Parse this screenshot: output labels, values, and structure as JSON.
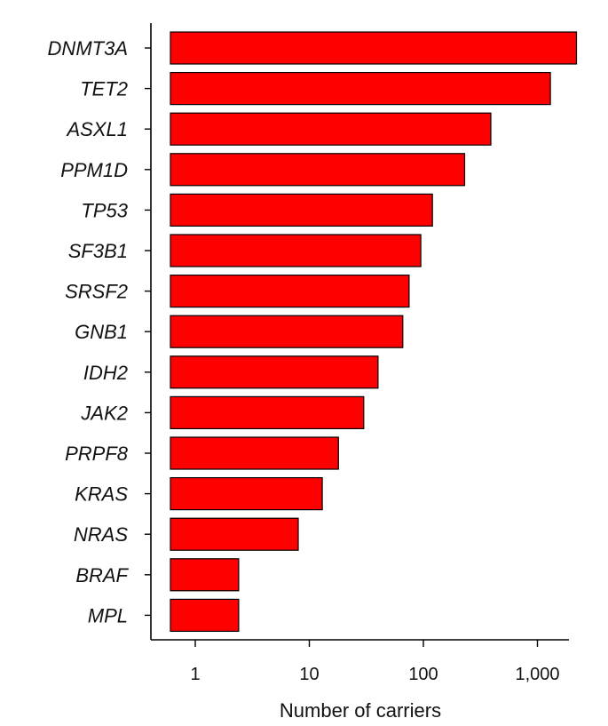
{
  "chart_data": {
    "type": "bar",
    "orientation": "horizontal",
    "x_scale": "log",
    "categories": [
      "DNMT3A",
      "TET2",
      "ASXL1",
      "PPM1D",
      "TP53",
      "SF3B1",
      "SRSF2",
      "GNB1",
      "IDH2",
      "JAK2",
      "PRPF8",
      "KRAS",
      "NRAS",
      "BRAF",
      "MPL"
    ],
    "values": [
      2200,
      1300,
      390,
      230,
      120,
      95,
      75,
      66,
      40,
      30,
      18,
      13,
      8,
      2.4,
      2.4
    ],
    "xlabel": "Number of carriers",
    "ylabel": "",
    "x_ticks": [
      {
        "value": 1,
        "label": "1"
      },
      {
        "value": 10,
        "label": "10"
      },
      {
        "value": 100,
        "label": "100"
      },
      {
        "value": 1000,
        "label": "1,000"
      }
    ],
    "xlim": [
      0.6,
      3000
    ],
    "colors": {
      "bar_fill": "#ff0000",
      "bar_stroke": "#000000"
    }
  }
}
